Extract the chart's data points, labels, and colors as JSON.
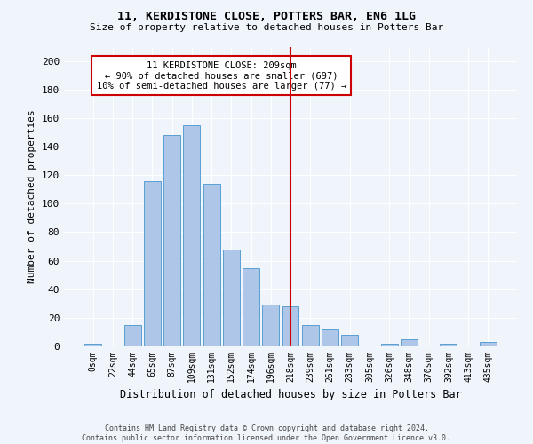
{
  "title": "11, KERDISTONE CLOSE, POTTERS BAR, EN6 1LG",
  "subtitle": "Size of property relative to detached houses in Potters Bar",
  "xlabel": "Distribution of detached houses by size in Potters Bar",
  "ylabel": "Number of detached properties",
  "bar_labels": [
    "0sqm",
    "22sqm",
    "44sqm",
    "65sqm",
    "87sqm",
    "109sqm",
    "131sqm",
    "152sqm",
    "174sqm",
    "196sqm",
    "218sqm",
    "239sqm",
    "261sqm",
    "283sqm",
    "305sqm",
    "326sqm",
    "348sqm",
    "370sqm",
    "392sqm",
    "413sqm",
    "435sqm"
  ],
  "bar_heights": [
    2,
    0,
    15,
    116,
    148,
    155,
    114,
    68,
    55,
    29,
    28,
    15,
    12,
    8,
    0,
    2,
    5,
    0,
    2,
    0,
    3
  ],
  "bar_color": "#aec6e8",
  "bar_edge_color": "#5a9fd4",
  "vline_x": 10.0,
  "vline_color": "#cc0000",
  "annotation_text": "11 KERDISTONE CLOSE: 209sqm\n← 90% of detached houses are smaller (697)\n10% of semi-detached houses are larger (77) →",
  "annotation_box_color": "#ffffff",
  "annotation_box_edge_color": "#cc0000",
  "ylim": [
    0,
    210
  ],
  "yticks": [
    0,
    20,
    40,
    60,
    80,
    100,
    120,
    140,
    160,
    180,
    200
  ],
  "bg_color": "#f0f4fb",
  "footer_line1": "Contains HM Land Registry data © Crown copyright and database right 2024.",
  "footer_line2": "Contains public sector information licensed under the Open Government Licence v3.0."
}
